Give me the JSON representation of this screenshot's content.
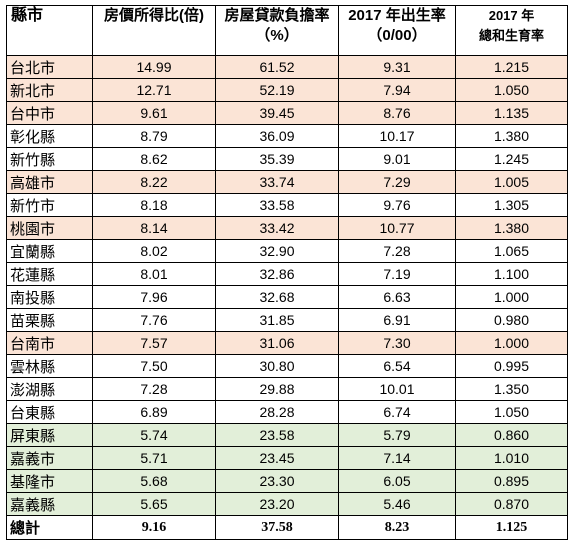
{
  "headers": {
    "county": "縣市",
    "price_income_ratio": "房價所得比(倍)",
    "mortgage_burden_line1": "房屋貸款負擔率",
    "mortgage_burden_line2": "（%）",
    "birth_rate_line1": "2017 年出生率",
    "birth_rate_line2": "（0/00）",
    "tfr_line1": "2017 年",
    "tfr_line2": "總和生育率"
  },
  "row_colors": {
    "pink": "#fbe4d6",
    "green": "#e2efd9"
  },
  "rows": [
    {
      "name": "台北市",
      "ratio": "14.99",
      "burden": "61.52",
      "birth": "9.31",
      "tfr": "1.215",
      "hl": "pink"
    },
    {
      "name": "新北市",
      "ratio": "12.71",
      "burden": "52.19",
      "birth": "7.94",
      "tfr": "1.050",
      "hl": "pink"
    },
    {
      "name": "台中市",
      "ratio": "9.61",
      "burden": "39.45",
      "birth": "8.76",
      "tfr": "1.135",
      "hl": "pink"
    },
    {
      "name": "彰化縣",
      "ratio": "8.79",
      "burden": "36.09",
      "birth": "10.17",
      "tfr": "1.380",
      "hl": ""
    },
    {
      "name": "新竹縣",
      "ratio": "8.62",
      "burden": "35.39",
      "birth": "9.01",
      "tfr": "1.245",
      "hl": ""
    },
    {
      "name": "高雄市",
      "ratio": "8.22",
      "burden": "33.74",
      "birth": "7.29",
      "tfr": "1.005",
      "hl": "pink"
    },
    {
      "name": "新竹市",
      "ratio": "8.18",
      "burden": "33.58",
      "birth": "9.76",
      "tfr": "1.305",
      "hl": ""
    },
    {
      "name": "桃園市",
      "ratio": "8.14",
      "burden": "33.42",
      "birth": "10.77",
      "tfr": "1.380",
      "hl": "pink"
    },
    {
      "name": "宜蘭縣",
      "ratio": "8.02",
      "burden": "32.90",
      "birth": "7.28",
      "tfr": "1.065",
      "hl": ""
    },
    {
      "name": "花蓮縣",
      "ratio": "8.01",
      "burden": "32.86",
      "birth": "7.19",
      "tfr": "1.100",
      "hl": ""
    },
    {
      "name": "南投縣",
      "ratio": "7.96",
      "burden": "32.68",
      "birth": "6.63",
      "tfr": "1.000",
      "hl": ""
    },
    {
      "name": "苗栗縣",
      "ratio": "7.76",
      "burden": "31.85",
      "birth": "6.91",
      "tfr": "0.980",
      "hl": ""
    },
    {
      "name": "台南市",
      "ratio": "7.57",
      "burden": "31.06",
      "birth": "7.30",
      "tfr": "1.000",
      "hl": "pink"
    },
    {
      "name": "雲林縣",
      "ratio": "7.50",
      "burden": "30.80",
      "birth": "6.54",
      "tfr": "0.995",
      "hl": ""
    },
    {
      "name": "澎湖縣",
      "ratio": "7.28",
      "burden": "29.88",
      "birth": "10.01",
      "tfr": "1.350",
      "hl": ""
    },
    {
      "name": "台東縣",
      "ratio": "6.89",
      "burden": "28.28",
      "birth": "6.74",
      "tfr": "1.050",
      "hl": ""
    },
    {
      "name": "屏東縣",
      "ratio": "5.74",
      "burden": "23.58",
      "birth": "5.79",
      "tfr": "0.860",
      "hl": "green"
    },
    {
      "name": "嘉義市",
      "ratio": "5.71",
      "burden": "23.45",
      "birth": "7.14",
      "tfr": "1.010",
      "hl": "green"
    },
    {
      "name": "基隆市",
      "ratio": "5.68",
      "burden": "23.30",
      "birth": "6.05",
      "tfr": "0.895",
      "hl": "green"
    },
    {
      "name": "嘉義縣",
      "ratio": "5.65",
      "burden": "23.20",
      "birth": "5.46",
      "tfr": "0.870",
      "hl": "green"
    }
  ],
  "total": {
    "name": "總計",
    "ratio": "9.16",
    "burden": "37.58",
    "birth": "8.23",
    "tfr": "1.125"
  }
}
